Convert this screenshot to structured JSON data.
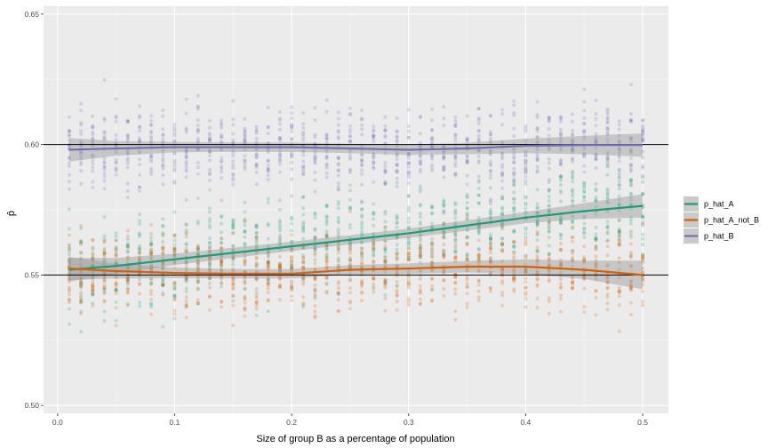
{
  "chart_data": {
    "type": "scatter",
    "title": "",
    "xlabel": "Size of group B as a percentage of population",
    "ylabel": "p̂",
    "xlim": [
      -0.012,
      0.522
    ],
    "ylim": [
      0.497,
      0.653
    ],
    "x_ticks": [
      0.0,
      0.1,
      0.2,
      0.3,
      0.4,
      0.5
    ],
    "x_tick_labels": [
      "0.0",
      "0.1",
      "0.2",
      "0.3",
      "0.4",
      "0.5"
    ],
    "y_ticks": [
      0.5,
      0.55,
      0.6,
      0.65
    ],
    "y_tick_labels": [
      "0.50",
      "0.55",
      "0.60",
      "0.65"
    ],
    "grid": true,
    "reference_lines": [
      0.55,
      0.6
    ],
    "legend_position": "right",
    "x_group_values": [
      0.01,
      0.02,
      0.03,
      0.04,
      0.05,
      0.06,
      0.07,
      0.08,
      0.09,
      0.1,
      0.11,
      0.12,
      0.13,
      0.14,
      0.15,
      0.16,
      0.17,
      0.18,
      0.19,
      0.2,
      0.21,
      0.22,
      0.23,
      0.24,
      0.25,
      0.26,
      0.27,
      0.28,
      0.29,
      0.3,
      0.31,
      0.32,
      0.33,
      0.34,
      0.35,
      0.36,
      0.37,
      0.38,
      0.39,
      0.4,
      0.41,
      0.42,
      0.43,
      0.44,
      0.45,
      0.46,
      0.47,
      0.48,
      0.49,
      0.5
    ],
    "series": [
      {
        "name": "p_hat_A",
        "color": "#1b9e77",
        "point_center": 0.565,
        "point_spread": 0.016,
        "smooth_x": [
          0.01,
          0.05,
          0.1,
          0.15,
          0.2,
          0.25,
          0.3,
          0.35,
          0.4,
          0.45,
          0.5
        ],
        "smooth_y": [
          0.552,
          0.5535,
          0.556,
          0.5585,
          0.561,
          0.5635,
          0.566,
          0.569,
          0.572,
          0.5745,
          0.5765
        ],
        "band_halfwidth": [
          0.0045,
          0.003,
          0.0022,
          0.002,
          0.0018,
          0.0018,
          0.0018,
          0.002,
          0.0022,
          0.003,
          0.0045
        ]
      },
      {
        "name": "p_hat_A_not_B",
        "color": "#d95f02",
        "point_center": 0.552,
        "point_spread": 0.014,
        "smooth_x": [
          0.01,
          0.05,
          0.1,
          0.15,
          0.2,
          0.25,
          0.3,
          0.35,
          0.4,
          0.45,
          0.5
        ],
        "smooth_y": [
          0.5525,
          0.5515,
          0.5508,
          0.5505,
          0.5505,
          0.552,
          0.5525,
          0.5532,
          0.5532,
          0.552,
          0.55
        ],
        "band_halfwidth": [
          0.0045,
          0.0028,
          0.002,
          0.0018,
          0.0018,
          0.0018,
          0.002,
          0.0022,
          0.0028,
          0.0035,
          0.0055
        ]
      },
      {
        "name": "p_hat_B",
        "color": "#7570b3",
        "point_center": 0.6,
        "point_spread": 0.014,
        "smooth_x": [
          0.01,
          0.05,
          0.1,
          0.15,
          0.2,
          0.25,
          0.3,
          0.35,
          0.4,
          0.45,
          0.5
        ],
        "smooth_y": [
          0.598,
          0.5985,
          0.599,
          0.599,
          0.599,
          0.5985,
          0.598,
          0.5985,
          0.5995,
          0.5998,
          0.5998
        ],
        "band_halfwidth": [
          0.0045,
          0.0028,
          0.002,
          0.0018,
          0.0018,
          0.0018,
          0.002,
          0.0022,
          0.0028,
          0.0035,
          0.0045
        ]
      }
    ]
  }
}
